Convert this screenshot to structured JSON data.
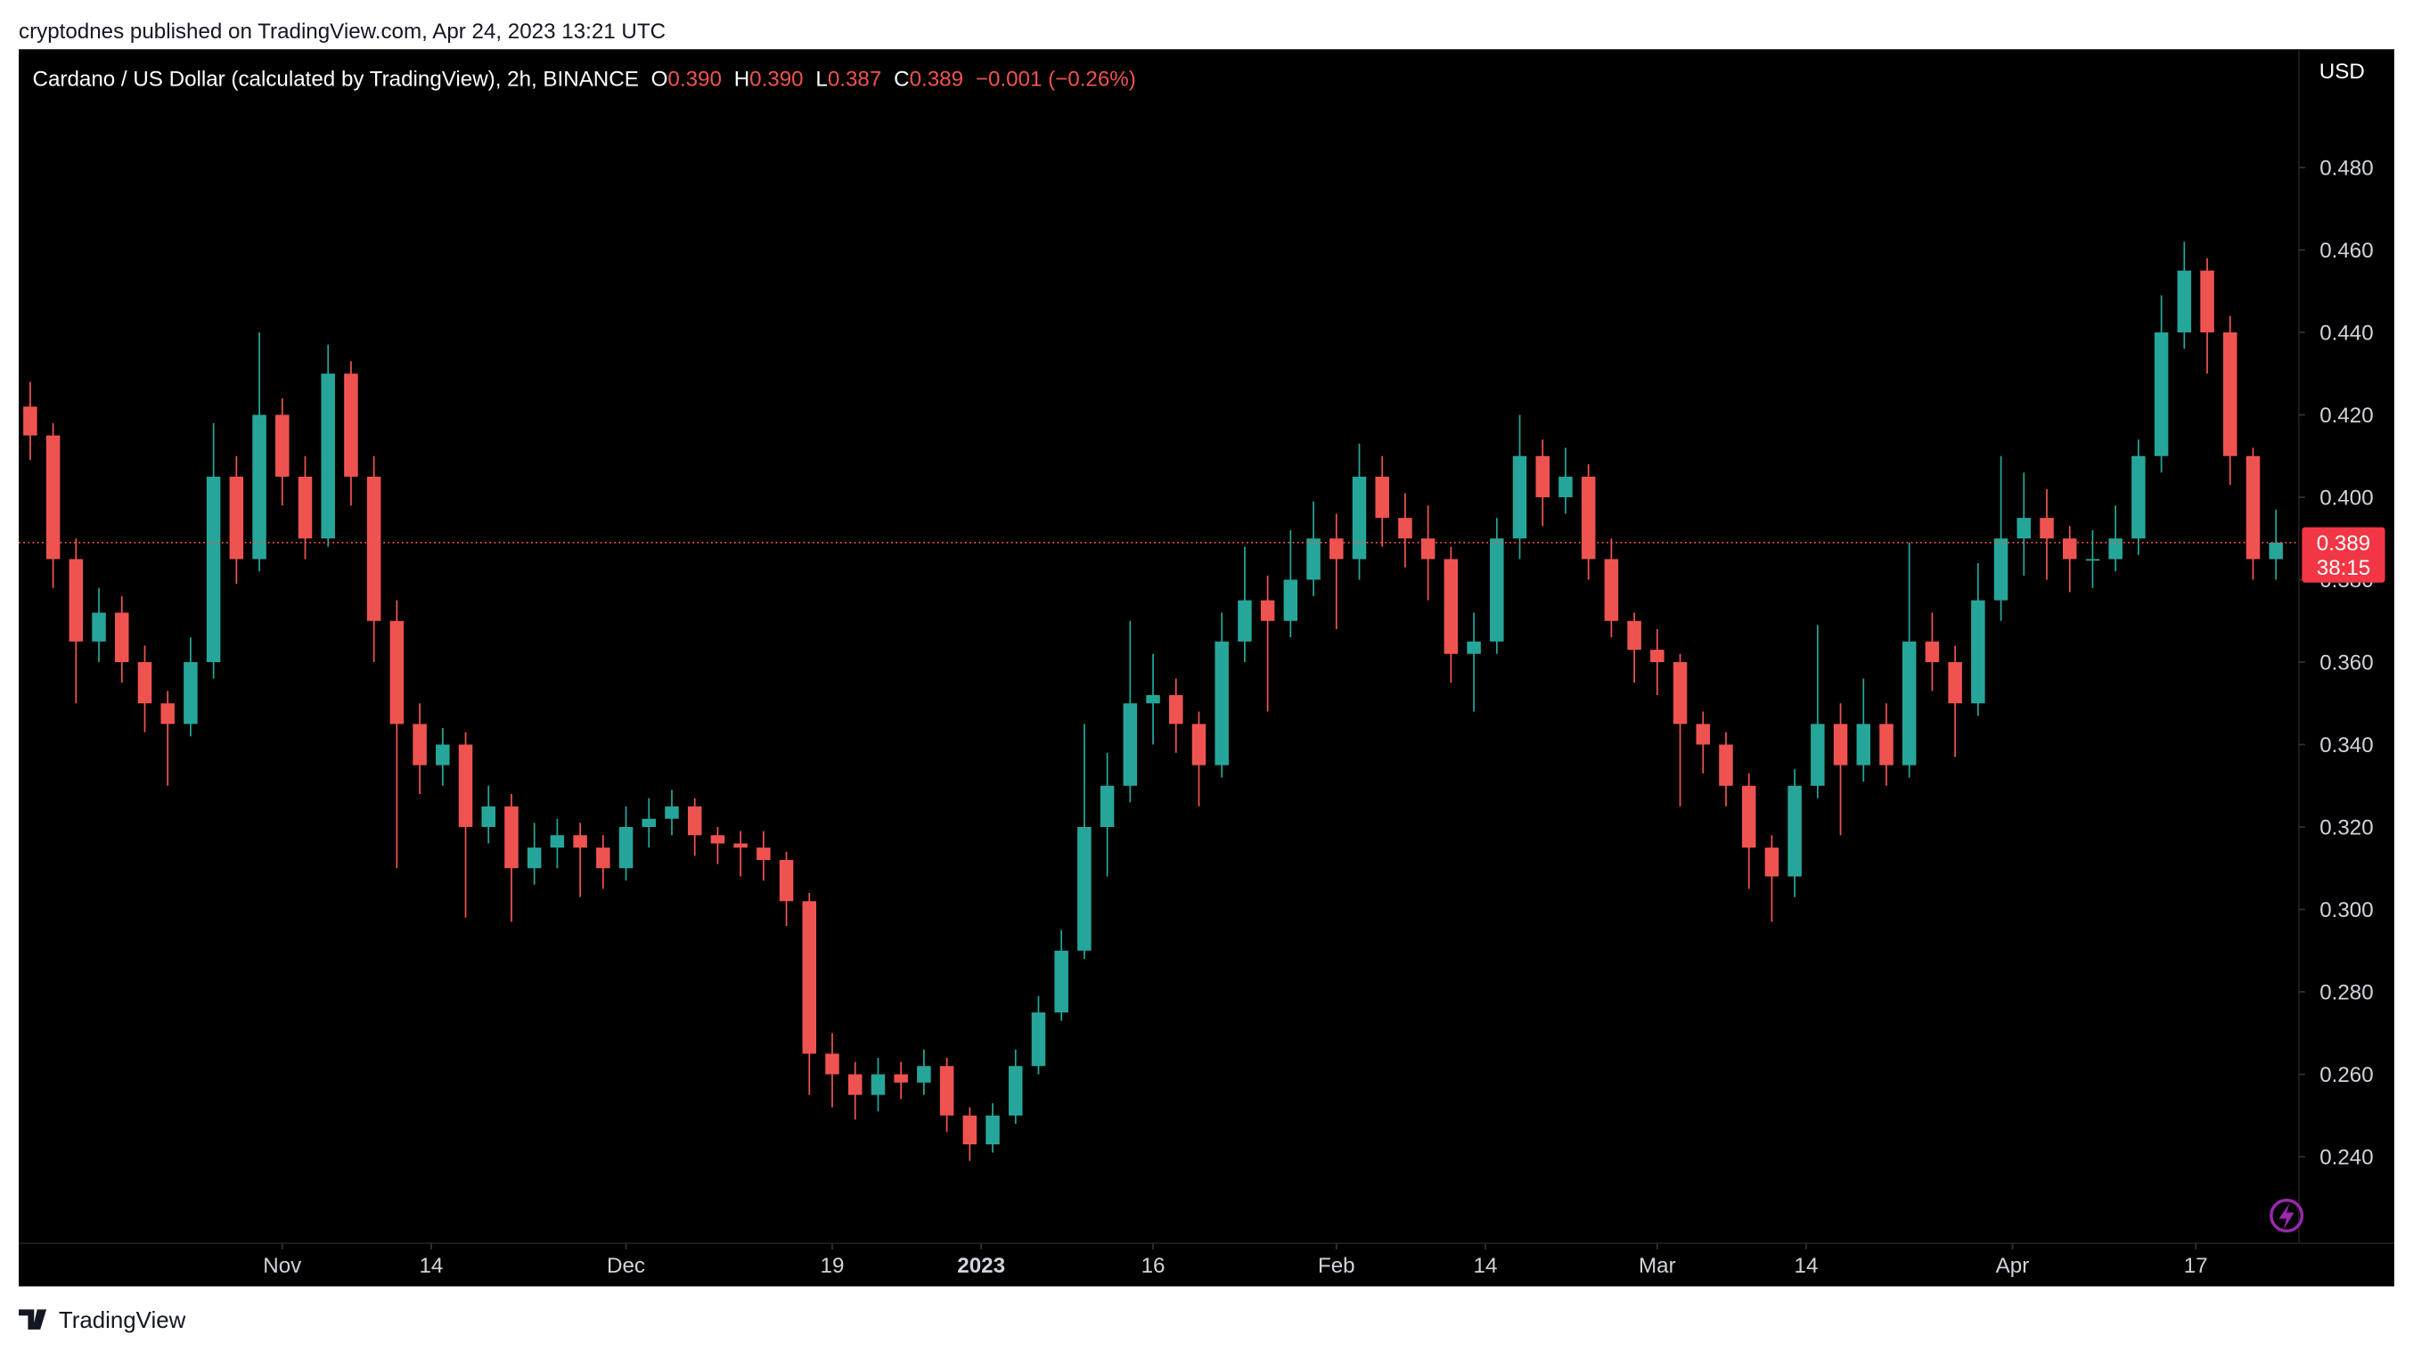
{
  "header": {
    "publisher": "cryptodnes published on TradingView.com, Apr 24, 2023 13:21 UTC"
  },
  "footer": {
    "brand": "TradingView"
  },
  "chart_data": {
    "type": "candlestick",
    "symbol": "Cardano / US Dollar (calculated by TradingView), 2h, BINANCE",
    "ohlc_legend": [
      {
        "label": "O",
        "value": "0.390"
      },
      {
        "label": "H",
        "value": "0.390"
      },
      {
        "label": "L",
        "value": "0.387"
      },
      {
        "label": "C",
        "value": "0.389"
      }
    ],
    "change": "−0.001 (−0.26%)",
    "currency": "USD",
    "last_price": 0.389,
    "countdown": "38:15",
    "up_color": "#26a69a",
    "down_color": "#ef5350",
    "xlim": [
      "2022-10-09",
      "2023-04-26"
    ],
    "ylim": [
      0.219,
      0.5087
    ],
    "yticks": [
      {
        "value": 0.24,
        "label": "0.240"
      },
      {
        "value": 0.26,
        "label": "0.260"
      },
      {
        "value": 0.28,
        "label": "0.280"
      },
      {
        "value": 0.3,
        "label": "0.300"
      },
      {
        "value": 0.32,
        "label": "0.320"
      },
      {
        "value": 0.34,
        "label": "0.340"
      },
      {
        "value": 0.36,
        "label": "0.360"
      },
      {
        "value": 0.38,
        "label": "0.380"
      },
      {
        "value": 0.4,
        "label": "0.400"
      },
      {
        "value": 0.42,
        "label": "0.420"
      },
      {
        "value": 0.44,
        "label": "0.440"
      },
      {
        "value": 0.46,
        "label": "0.460"
      },
      {
        "value": 0.48,
        "label": "0.480"
      }
    ],
    "xticks": [
      {
        "value": "2022-11-01",
        "label": "Nov"
      },
      {
        "value": "2022-11-14",
        "label": "14"
      },
      {
        "value": "2022-12-01",
        "label": "Dec"
      },
      {
        "value": "2022-12-19",
        "label": "19"
      },
      {
        "value": "2023-01-01",
        "label": "2023"
      },
      {
        "value": "2023-01-16",
        "label": "16"
      },
      {
        "value": "2023-02-01",
        "label": "Feb"
      },
      {
        "value": "2023-02-14",
        "label": "14"
      },
      {
        "value": "2023-03-01",
        "label": "Mar"
      },
      {
        "value": "2023-03-14",
        "label": "14"
      },
      {
        "value": "2023-04-01",
        "label": "Apr"
      },
      {
        "value": "2023-04-17",
        "label": "17"
      }
    ],
    "x": [
      "2022-10-10",
      "2022-10-12",
      "2022-10-14",
      "2022-10-16",
      "2022-10-18",
      "2022-10-20",
      "2022-10-22",
      "2022-10-24",
      "2022-10-26",
      "2022-10-28",
      "2022-10-30",
      "2022-11-01",
      "2022-11-03",
      "2022-11-05",
      "2022-11-07",
      "2022-11-09",
      "2022-11-11",
      "2022-11-13",
      "2022-11-15",
      "2022-11-17",
      "2022-11-19",
      "2022-11-21",
      "2022-11-23",
      "2022-11-25",
      "2022-11-27",
      "2022-11-29",
      "2022-12-01",
      "2022-12-03",
      "2022-12-05",
      "2022-12-07",
      "2022-12-09",
      "2022-12-11",
      "2022-12-13",
      "2022-12-15",
      "2022-12-17",
      "2022-12-19",
      "2022-12-21",
      "2022-12-23",
      "2022-12-25",
      "2022-12-27",
      "2022-12-29",
      "2022-12-31",
      "2023-01-02",
      "2023-01-04",
      "2023-01-06",
      "2023-01-08",
      "2023-01-10",
      "2023-01-12",
      "2023-01-14",
      "2023-01-16",
      "2023-01-18",
      "2023-01-20",
      "2023-01-22",
      "2023-01-24",
      "2023-01-26",
      "2023-01-28",
      "2023-01-30",
      "2023-02-01",
      "2023-02-03",
      "2023-02-05",
      "2023-02-07",
      "2023-02-09",
      "2023-02-11",
      "2023-02-13",
      "2023-02-15",
      "2023-02-17",
      "2023-02-19",
      "2023-02-21",
      "2023-02-23",
      "2023-02-25",
      "2023-02-27",
      "2023-03-01",
      "2023-03-03",
      "2023-03-05",
      "2023-03-07",
      "2023-03-09",
      "2023-03-11",
      "2023-03-13",
      "2023-03-15",
      "2023-03-17",
      "2023-03-19",
      "2023-03-21",
      "2023-03-23",
      "2023-03-25",
      "2023-03-27",
      "2023-03-29",
      "2023-03-31",
      "2023-04-02",
      "2023-04-04",
      "2023-04-06",
      "2023-04-08",
      "2023-04-10",
      "2023-04-12",
      "2023-04-14",
      "2023-04-16",
      "2023-04-18",
      "2023-04-20",
      "2023-04-22",
      "2023-04-24"
    ],
    "open": [
      0.422,
      0.415,
      0.385,
      0.365,
      0.372,
      0.36,
      0.35,
      0.345,
      0.36,
      0.405,
      0.385,
      0.42,
      0.405,
      0.39,
      0.43,
      0.405,
      0.37,
      0.345,
      0.335,
      0.34,
      0.32,
      0.325,
      0.31,
      0.315,
      0.318,
      0.315,
      0.31,
      0.32,
      0.322,
      0.325,
      0.318,
      0.316,
      0.315,
      0.312,
      0.302,
      0.265,
      0.26,
      0.255,
      0.26,
      0.258,
      0.262,
      0.25,
      0.243,
      0.25,
      0.262,
      0.275,
      0.29,
      0.32,
      0.33,
      0.35,
      0.352,
      0.345,
      0.335,
      0.365,
      0.375,
      0.37,
      0.38,
      0.39,
      0.385,
      0.405,
      0.395,
      0.39,
      0.385,
      0.362,
      0.365,
      0.39,
      0.41,
      0.4,
      0.405,
      0.385,
      0.37,
      0.363,
      0.36,
      0.345,
      0.34,
      0.33,
      0.315,
      0.308,
      0.33,
      0.345,
      0.335,
      0.345,
      0.335,
      0.365,
      0.36,
      0.35,
      0.375,
      0.39,
      0.395,
      0.39,
      0.385,
      0.385,
      0.39,
      0.41,
      0.44,
      0.455,
      0.44,
      0.41,
      0.385
    ],
    "high": [
      0.428,
      0.418,
      0.39,
      0.378,
      0.376,
      0.364,
      0.353,
      0.366,
      0.418,
      0.41,
      0.44,
      0.424,
      0.41,
      0.437,
      0.433,
      0.41,
      0.375,
      0.35,
      0.344,
      0.343,
      0.33,
      0.328,
      0.321,
      0.322,
      0.321,
      0.318,
      0.325,
      0.327,
      0.329,
      0.327,
      0.32,
      0.319,
      0.319,
      0.314,
      0.304,
      0.27,
      0.263,
      0.264,
      0.263,
      0.266,
      0.264,
      0.252,
      0.253,
      0.266,
      0.279,
      0.295,
      0.345,
      0.338,
      0.37,
      0.362,
      0.356,
      0.348,
      0.372,
      0.388,
      0.381,
      0.392,
      0.399,
      0.396,
      0.413,
      0.41,
      0.401,
      0.398,
      0.388,
      0.372,
      0.395,
      0.42,
      0.414,
      0.412,
      0.408,
      0.39,
      0.372,
      0.368,
      0.362,
      0.348,
      0.343,
      0.333,
      0.318,
      0.334,
      0.369,
      0.35,
      0.356,
      0.35,
      0.389,
      0.372,
      0.364,
      0.384,
      0.41,
      0.406,
      0.402,
      0.393,
      0.392,
      0.398,
      0.414,
      0.449,
      0.462,
      0.458,
      0.444,
      0.412,
      0.397
    ],
    "low": [
      0.409,
      0.378,
      0.35,
      0.36,
      0.355,
      0.343,
      0.33,
      0.342,
      0.356,
      0.379,
      0.382,
      0.398,
      0.385,
      0.388,
      0.398,
      0.36,
      0.31,
      0.328,
      0.33,
      0.298,
      0.316,
      0.297,
      0.306,
      0.31,
      0.303,
      0.305,
      0.307,
      0.315,
      0.318,
      0.313,
      0.311,
      0.308,
      0.307,
      0.296,
      0.255,
      0.252,
      0.249,
      0.251,
      0.254,
      0.255,
      0.246,
      0.239,
      0.241,
      0.248,
      0.26,
      0.273,
      0.288,
      0.308,
      0.326,
      0.34,
      0.338,
      0.325,
      0.332,
      0.36,
      0.348,
      0.366,
      0.376,
      0.368,
      0.38,
      0.388,
      0.383,
      0.375,
      0.355,
      0.348,
      0.362,
      0.385,
      0.393,
      0.396,
      0.38,
      0.366,
      0.355,
      0.352,
      0.325,
      0.333,
      0.325,
      0.305,
      0.297,
      0.303,
      0.327,
      0.318,
      0.331,
      0.33,
      0.332,
      0.353,
      0.337,
      0.347,
      0.37,
      0.381,
      0.38,
      0.377,
      0.378,
      0.382,
      0.386,
      0.406,
      0.436,
      0.43,
      0.403,
      0.38,
      0.38
    ],
    "close": [
      0.415,
      0.385,
      0.365,
      0.372,
      0.36,
      0.35,
      0.345,
      0.36,
      0.405,
      0.385,
      0.42,
      0.405,
      0.39,
      0.43,
      0.405,
      0.37,
      0.345,
      0.335,
      0.34,
      0.32,
      0.325,
      0.31,
      0.315,
      0.318,
      0.315,
      0.31,
      0.32,
      0.322,
      0.325,
      0.318,
      0.316,
      0.315,
      0.312,
      0.302,
      0.265,
      0.26,
      0.255,
      0.26,
      0.258,
      0.262,
      0.25,
      0.243,
      0.25,
      0.262,
      0.275,
      0.29,
      0.32,
      0.33,
      0.35,
      0.352,
      0.345,
      0.335,
      0.365,
      0.375,
      0.37,
      0.38,
      0.39,
      0.385,
      0.405,
      0.395,
      0.39,
      0.385,
      0.362,
      0.365,
      0.39,
      0.41,
      0.4,
      0.405,
      0.385,
      0.37,
      0.363,
      0.36,
      0.345,
      0.34,
      0.33,
      0.315,
      0.308,
      0.33,
      0.345,
      0.335,
      0.345,
      0.335,
      0.365,
      0.36,
      0.35,
      0.375,
      0.39,
      0.395,
      0.39,
      0.385,
      0.385,
      0.39,
      0.41,
      0.44,
      0.455,
      0.44,
      0.41,
      0.385,
      0.389
    ]
  }
}
